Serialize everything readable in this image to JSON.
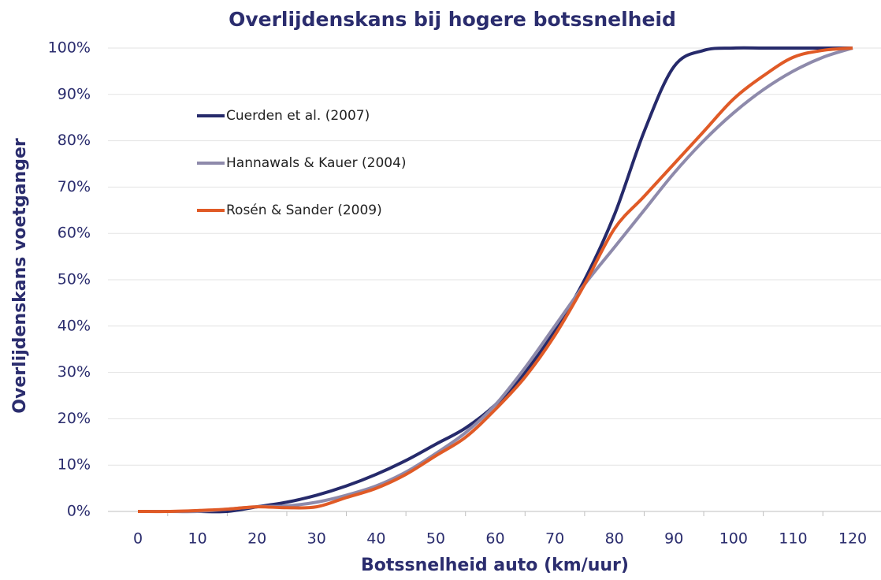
{
  "chart_data": {
    "type": "line",
    "title": "Overlijdenskans bij hogere botssnelheid",
    "x_label": "Botssnelheid auto (km/uur)",
    "y_label": "Overlijdenskans voetganger",
    "x": [
      0,
      5,
      10,
      15,
      20,
      25,
      30,
      35,
      40,
      45,
      50,
      55,
      60,
      65,
      70,
      75,
      80,
      85,
      90,
      95,
      100,
      105,
      110,
      115,
      120
    ],
    "series": [
      {
        "name": "Cuerden et  al. (2007)",
        "color": "#262a6b",
        "values": [
          0,
          0,
          0,
          0,
          1,
          2,
          3.5,
          5.5,
          8,
          11,
          14.5,
          18,
          23,
          30,
          39,
          50,
          64,
          82,
          96,
          99.5,
          100,
          100,
          100,
          100,
          100
        ]
      },
      {
        "name": "Hannawals & Kauer (2004)",
        "color": "#8e8aab",
        "values": [
          0,
          0,
          0,
          0.5,
          1,
          1.2,
          2,
          3.5,
          5.5,
          8.5,
          12.5,
          17,
          23,
          31,
          40,
          49,
          57,
          65,
          73,
          80,
          86,
          91,
          95,
          98,
          100
        ]
      },
      {
        "name": "Rosén & Sander (2009)",
        "color": "#e05a26",
        "values": [
          0,
          0,
          0.2,
          0.5,
          1,
          0.8,
          1,
          3,
          5,
          8,
          12,
          16,
          22,
          29,
          38,
          49,
          61,
          68,
          75,
          82,
          89,
          94,
          98,
          99.5,
          100
        ]
      }
    ],
    "xlim": [
      0,
      120
    ],
    "xticks": [
      0,
      10,
      20,
      30,
      40,
      50,
      60,
      70,
      80,
      90,
      100,
      110,
      120
    ],
    "ylim": [
      0,
      100
    ],
    "yticks": [
      {
        "value": 0,
        "label": "0%"
      },
      {
        "value": 10,
        "label": "10%"
      },
      {
        "value": 20,
        "label": "20%"
      },
      {
        "value": 30,
        "label": "30%"
      },
      {
        "value": 40,
        "label": "40%"
      },
      {
        "value": 50,
        "label": "50%"
      },
      {
        "value": 60,
        "label": "60%"
      },
      {
        "value": 70,
        "label": "70%"
      },
      {
        "value": 80,
        "label": "80%"
      },
      {
        "value": 90,
        "label": "90%"
      },
      {
        "value": 100,
        "label": "100%"
      }
    ],
    "grid": true,
    "legend": "upper-left"
  }
}
